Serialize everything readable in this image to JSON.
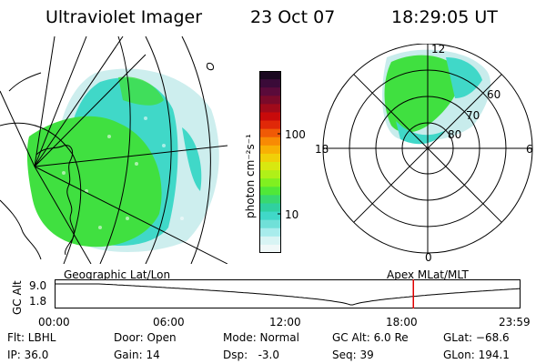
{
  "header": {
    "title": "Ultraviolet Imager",
    "date": "23 Oct 07",
    "time": "18:29:05 UT"
  },
  "colorbar": {
    "unit_label": "photon cm⁻²s⁻¹",
    "ticks": [
      "100",
      "10"
    ],
    "colors": [
      "#1a0820",
      "#3a0a38",
      "#5a0a3a",
      "#7a0a2a",
      "#a00a1a",
      "#c80a0a",
      "#e02808",
      "#f05a06",
      "#f88a04",
      "#f8b004",
      "#f0d008",
      "#d8e810",
      "#b0f018",
      "#80f020",
      "#50e838",
      "#38d870",
      "#30d0a0",
      "#40d8c8",
      "#70e0d8",
      "#a8ecec",
      "#d8f4f4",
      "#f0f8f8"
    ]
  },
  "geo_panel": {
    "colors": {
      "aurora_green": "#40e040",
      "aurora_cyan": "#40d8c8",
      "aurora_light": "#c8ecec"
    }
  },
  "polar_panel": {
    "mlt_labels": {
      "top": "12",
      "right": "6",
      "bottom": "0",
      "left": "18"
    },
    "mlat_labels": [
      "60",
      "70",
      "80"
    ]
  },
  "altitude_plot": {
    "ylabel": "GC Alt",
    "yticks": [
      "9.0",
      "1.8"
    ],
    "left_caption": "Geographic Lat/Lon",
    "right_caption": "Apex MLat/MLT",
    "xticks": [
      "00:00",
      "06:00",
      "12:00",
      "18:00",
      "23:59"
    ],
    "marker_time_hours": 18.48,
    "marker_color": "#e00000",
    "orbit_minimum_time_hours": 15.3
  },
  "info": {
    "filter": "Flt: LBHL",
    "ip": "IP: 36.0",
    "door": "Door: Open",
    "gain": "Gain: 14",
    "mode": "Mode: Normal",
    "dsp": "Dsp:   -3.0",
    "gc_alt": "GC Alt: 6.0 Re",
    "seq": "Seq: 39",
    "glat": "GLat: −68.6",
    "glon": "GLon: 194.1"
  }
}
